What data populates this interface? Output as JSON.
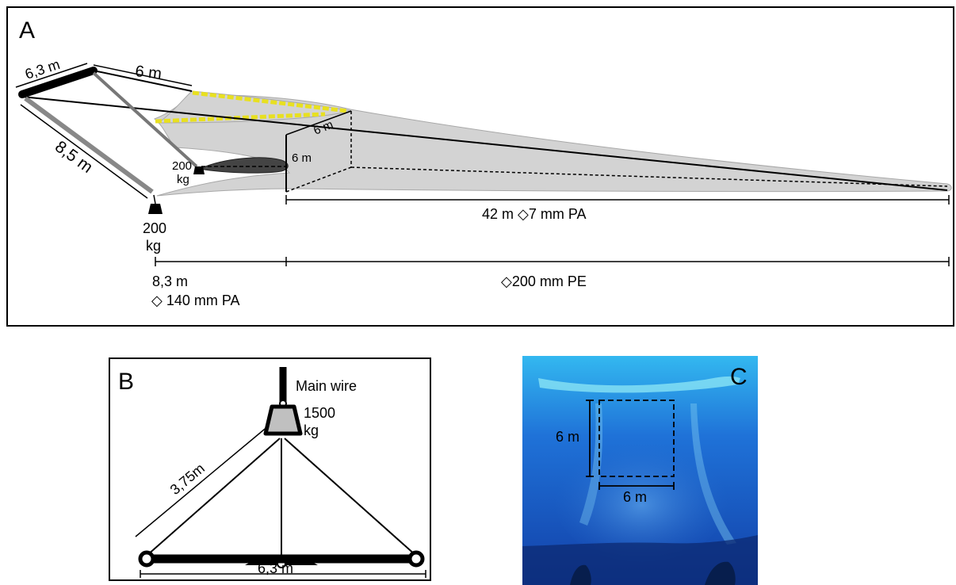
{
  "panel_a": {
    "letter": "A",
    "label_bar_length": "6,3 m",
    "label_upper_rope": "6 m",
    "label_side_rope": "8,5 m",
    "label_mouth_width": "6 m",
    "label_mouth_height": "6 m",
    "label_small_weight_value": "200",
    "label_small_weight_unit": "kg",
    "label_big_weight_value": "200",
    "label_big_weight_unit": "kg",
    "label_body": "42 m ◇7 mm PA",
    "label_front_length": "8,3 m",
    "label_front_mesh": "◇ 140 mm PA",
    "label_rear_mesh": "◇200 mm PE",
    "colors": {
      "net_fill": "#d3d3d3",
      "float_line": "#e8e020",
      "kite": "#444444"
    }
  },
  "panel_b": {
    "letter": "B",
    "label_wire": "Main wire",
    "label_weight_value": "1500",
    "label_weight_unit": "kg",
    "label_bridle": "3,75m",
    "label_bar": "6,3 m",
    "colors": {
      "weight_fill": "#c0c0c0"
    }
  },
  "panel_c": {
    "letter": "C",
    "label_height": "6 m",
    "label_width": "6 m",
    "colors": {
      "water_top": "#33b8f0",
      "water_mid": "#1f72d8",
      "water_deep": "#1240a8"
    }
  }
}
